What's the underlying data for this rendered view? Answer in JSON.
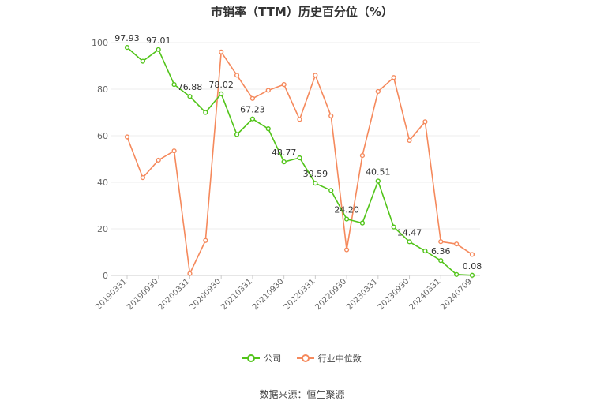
{
  "chart_data": {
    "type": "line",
    "title": "市销率（TTM）历史百分位（%）",
    "ylim": [
      0,
      100
    ],
    "yticks": [
      0,
      20,
      40,
      60,
      80,
      100
    ],
    "x": [
      "20190331",
      "20190630",
      "20190930",
      "20191231",
      "20200331",
      "20200630",
      "20200930",
      "20201231",
      "20210331",
      "20210630",
      "20210930",
      "20211231",
      "20220331",
      "20220630",
      "20220930",
      "20221231",
      "20230331",
      "20230630",
      "20230930",
      "20231231",
      "20240331",
      "20240630",
      "20240709"
    ],
    "xtick_labels": [
      "20190331",
      "20190930",
      "20200331",
      "20200930",
      "20210331",
      "20210930",
      "20220331",
      "20220930",
      "20230331",
      "20230930",
      "20240331",
      "20240709"
    ],
    "series": [
      {
        "name": "公司",
        "color": "#52c41a",
        "values": [
          97.93,
          92.0,
          97.01,
          82.0,
          76.88,
          70.0,
          78.02,
          60.5,
          67.23,
          63.0,
          48.77,
          50.5,
          39.59,
          36.5,
          24.2,
          22.5,
          40.51,
          20.8,
          14.47,
          10.5,
          6.36,
          0.4,
          0.08
        ],
        "labels": [
          "97.93",
          "",
          "97.01",
          "",
          "76.88",
          "",
          "78.02",
          "",
          "67.23",
          "",
          "48.77",
          "",
          "39.59",
          "",
          "24.20",
          "",
          "40.51",
          "",
          "14.47",
          "",
          "6.36",
          "",
          "0.08"
        ]
      },
      {
        "name": "行业中位数",
        "color": "#f5895c",
        "values": [
          59.5,
          42.0,
          49.5,
          53.5,
          0.8,
          15.0,
          96.0,
          86.0,
          76.0,
          79.5,
          82.0,
          67.0,
          86.0,
          68.5,
          11.0,
          51.5,
          79.0,
          85.0,
          58.0,
          66.0,
          14.5,
          13.5,
          9.0
        ]
      }
    ]
  },
  "source": "数据来源：恒生聚源"
}
